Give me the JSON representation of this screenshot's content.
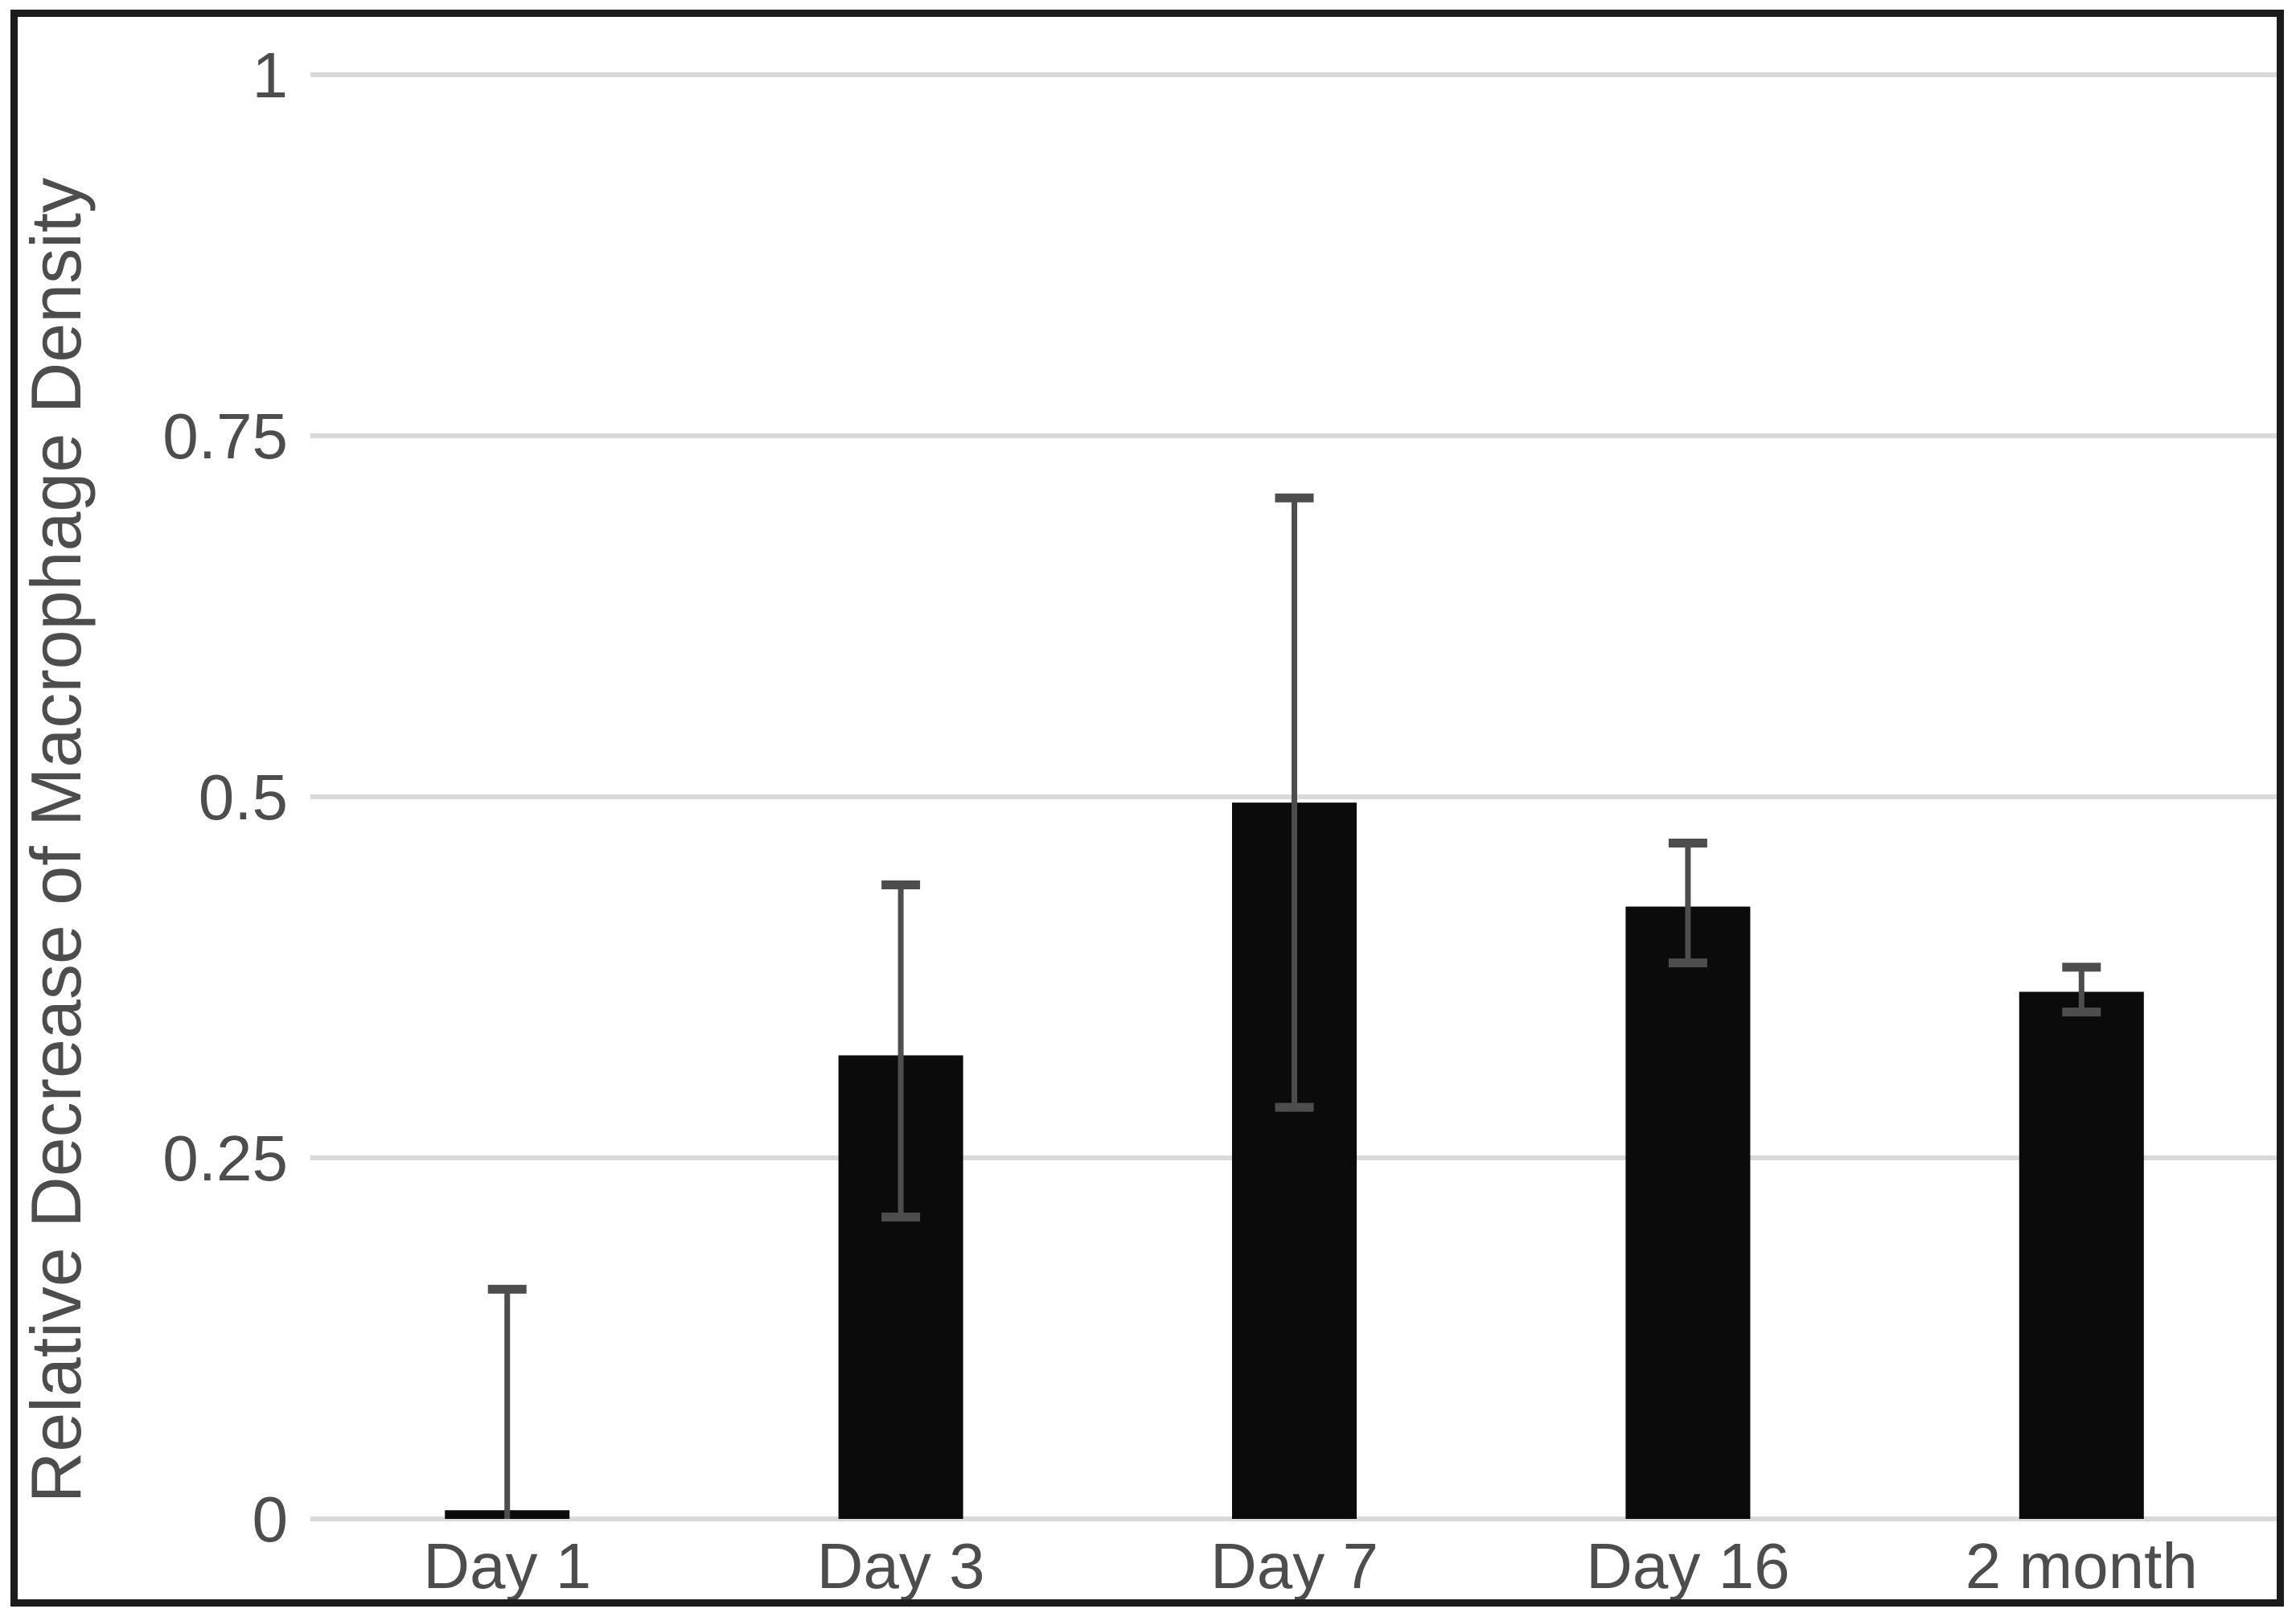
{
  "figure": {
    "kind": "excel-style bar chart with error bars",
    "background": "#ffffff"
  },
  "chart_data": {
    "type": "bar",
    "title": "",
    "xlabel": "",
    "ylabel": "Relative Decrease of Macrophage Density",
    "categories": [
      "Day 1",
      "Day 3",
      "Day 7",
      "Day 16",
      "2 month"
    ],
    "values": [
      0.006,
      0.321,
      0.496,
      0.424,
      0.365
    ],
    "error_bars": {
      "upper": [
        0.159,
        0.439,
        0.707,
        0.468,
        0.382
      ],
      "lower": [
        null,
        0.209,
        0.285,
        0.385,
        0.351
      ]
    },
    "ylim": [
      0,
      1
    ],
    "yticks": [
      0,
      0.25,
      0.5,
      0.75,
      1
    ],
    "ytick_labels": [
      "0",
      "0.25",
      "0.5",
      "0.75",
      "1"
    ],
    "grid": "horizontal",
    "legend": "none",
    "colors": {
      "bar": "#0b0b0b",
      "error": "#4d4d4d",
      "grid": "#d9d9d9",
      "text": "#4d4d4d",
      "frame": "#1c1c1c"
    }
  }
}
